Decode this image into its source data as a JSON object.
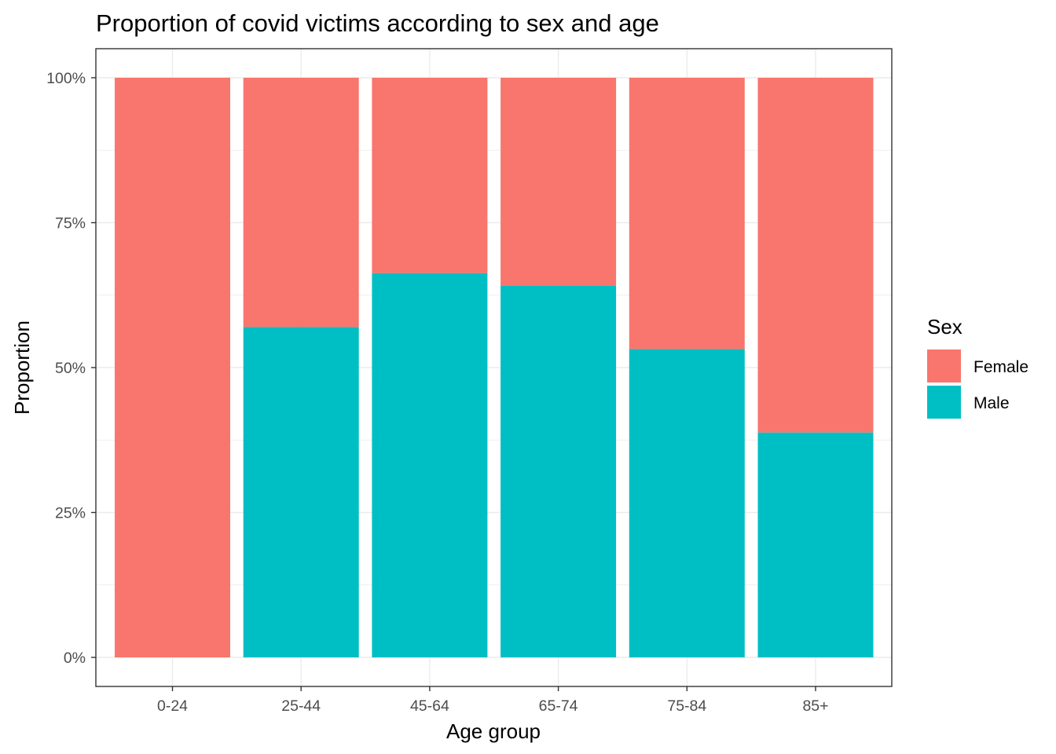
{
  "chart_data": {
    "type": "bar",
    "stacked": true,
    "title": "Proportion of covid victims according to sex and age",
    "xlabel": "Age group",
    "ylabel": "Proportion",
    "categories": [
      "0-24",
      "25-44",
      "45-64",
      "65-74",
      "75-84",
      "85+"
    ],
    "series": [
      {
        "name": "Female",
        "values": [
          1.0,
          0.43,
          0.337,
          0.359,
          0.468,
          0.612
        ]
      },
      {
        "name": "Male",
        "values": [
          0.0,
          0.57,
          0.663,
          0.641,
          0.532,
          0.388
        ]
      }
    ],
    "ylim": [
      0,
      1
    ],
    "yticks": [
      0,
      0.25,
      0.5,
      0.75,
      1
    ],
    "ytick_labels": [
      "0%",
      "25%",
      "50%",
      "75%",
      "100%"
    ],
    "grid": true,
    "legend": {
      "title": "Sex",
      "position": "right"
    },
    "colors": {
      "Female": "#F8766D",
      "Male": "#00BFC4",
      "grid": "#ebebeb",
      "frame": "#333333"
    }
  }
}
